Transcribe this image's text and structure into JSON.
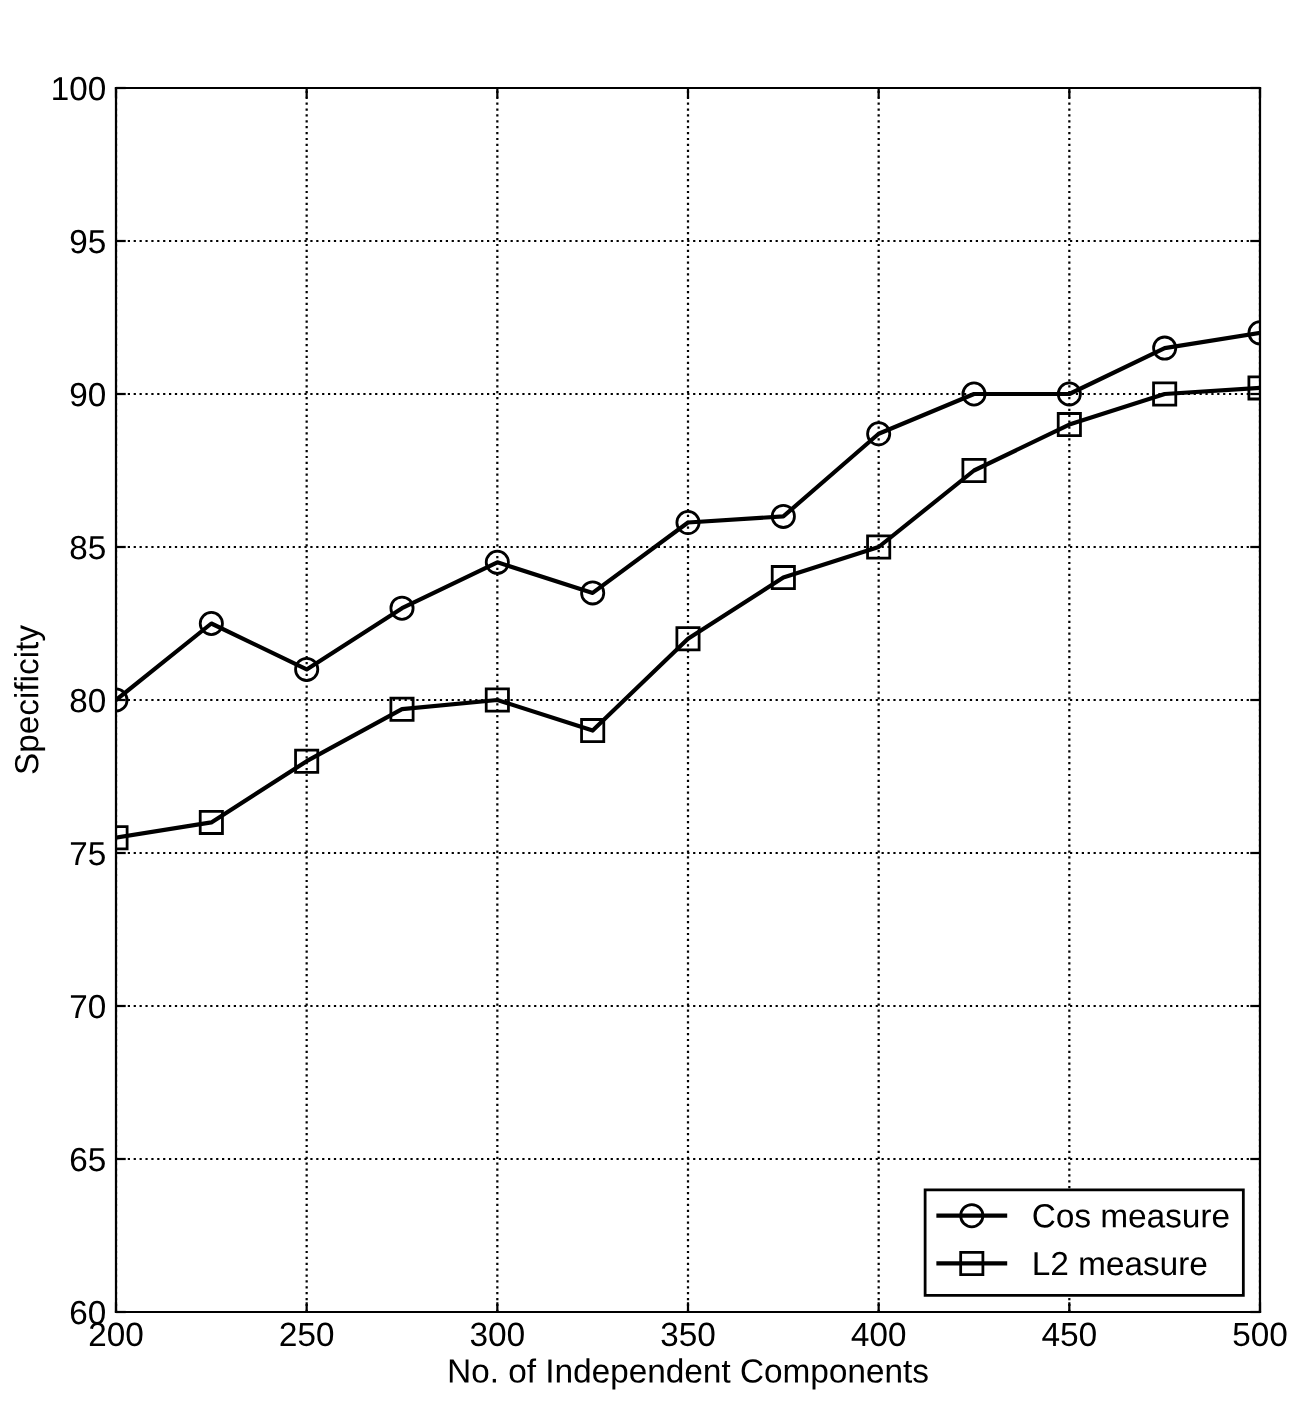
{
  "chart_data": {
    "type": "line",
    "xlabel": "No. of Independent Components",
    "ylabel": "Specificity",
    "x": [
      200,
      225,
      250,
      275,
      300,
      325,
      350,
      375,
      400,
      425,
      450,
      475,
      500
    ],
    "series": [
      {
        "name": "Cos measure",
        "color": "#000000",
        "marker": "circle",
        "values": [
          80,
          82.5,
          81,
          83,
          84.5,
          83.5,
          85.8,
          86,
          88.7,
          90,
          90,
          91.5,
          92
        ]
      },
      {
        "name": "L2 measure",
        "color": "#000000",
        "marker": "square",
        "values": [
          75.5,
          76,
          78,
          79.7,
          80,
          79,
          82,
          84,
          85,
          87.5,
          89,
          90,
          90.2
        ]
      }
    ],
    "xlim": [
      200,
      500
    ],
    "xticks": [
      200,
      250,
      300,
      350,
      400,
      450,
      500
    ],
    "ylim": [
      60,
      100
    ],
    "yticks": [
      60,
      65,
      70,
      75,
      80,
      85,
      90,
      95,
      100
    ],
    "grid": true,
    "legend": "bottom right",
    "line_style": "solid"
  }
}
